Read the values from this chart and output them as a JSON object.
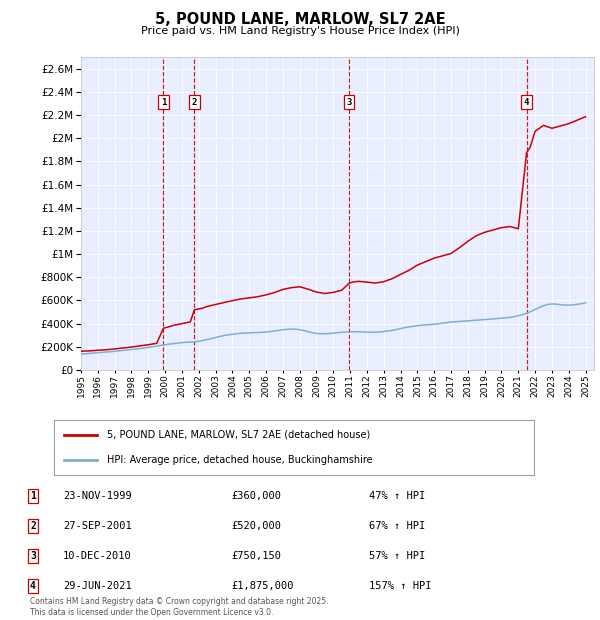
{
  "title": "5, POUND LANE, MARLOW, SL7 2AE",
  "subtitle": "Price paid vs. HM Land Registry's House Price Index (HPI)",
  "plot_bg_color": "#e8eeff",
  "ylim": [
    0,
    2700000
  ],
  "yticks": [
    0,
    200000,
    400000,
    600000,
    800000,
    1000000,
    1200000,
    1400000,
    1600000,
    1800000,
    2000000,
    2200000,
    2400000,
    2600000
  ],
  "ytick_labels": [
    "£0",
    "£200K",
    "£400K",
    "£600K",
    "£800K",
    "£1M",
    "£1.2M",
    "£1.4M",
    "£1.6M",
    "£1.8M",
    "£2M",
    "£2.2M",
    "£2.4M",
    "£2.6M"
  ],
  "xlim_start": 1995.0,
  "xlim_end": 2025.5,
  "sale_dates": [
    1999.9,
    2001.74,
    2010.95,
    2021.49
  ],
  "sale_labels": [
    "1",
    "2",
    "3",
    "4"
  ],
  "vline_color": "#cc0000",
  "hpi_color": "#7ab0d4",
  "price_color": "#cc0000",
  "legend_entries": [
    "5, POUND LANE, MARLOW, SL7 2AE (detached house)",
    "HPI: Average price, detached house, Buckinghamshire"
  ],
  "table_rows": [
    [
      "1",
      "23-NOV-1999",
      "£360,000",
      "47% ↑ HPI"
    ],
    [
      "2",
      "27-SEP-2001",
      "£520,000",
      "67% ↑ HPI"
    ],
    [
      "3",
      "10-DEC-2010",
      "£750,150",
      "57% ↑ HPI"
    ],
    [
      "4",
      "29-JUN-2021",
      "£1,875,000",
      "157% ↑ HPI"
    ]
  ],
  "footer": "Contains HM Land Registry data © Crown copyright and database right 2025.\nThis data is licensed under the Open Government Licence v3.0.",
  "hpi_x": [
    1995.0,
    1995.25,
    1995.5,
    1995.75,
    1996.0,
    1996.25,
    1996.5,
    1996.75,
    1997.0,
    1997.25,
    1997.5,
    1997.75,
    1998.0,
    1998.25,
    1998.5,
    1998.75,
    1999.0,
    1999.25,
    1999.5,
    1999.75,
    2000.0,
    2000.25,
    2000.5,
    2000.75,
    2001.0,
    2001.25,
    2001.5,
    2001.75,
    2002.0,
    2002.25,
    2002.5,
    2002.75,
    2003.0,
    2003.25,
    2003.5,
    2003.75,
    2004.0,
    2004.25,
    2004.5,
    2004.75,
    2005.0,
    2005.25,
    2005.5,
    2005.75,
    2006.0,
    2006.25,
    2006.5,
    2006.75,
    2007.0,
    2007.25,
    2007.5,
    2007.75,
    2008.0,
    2008.25,
    2008.5,
    2008.75,
    2009.0,
    2009.25,
    2009.5,
    2009.75,
    2010.0,
    2010.25,
    2010.5,
    2010.75,
    2011.0,
    2011.25,
    2011.5,
    2011.75,
    2012.0,
    2012.25,
    2012.5,
    2012.75,
    2013.0,
    2013.25,
    2013.5,
    2013.75,
    2014.0,
    2014.25,
    2014.5,
    2014.75,
    2015.0,
    2015.25,
    2015.5,
    2015.75,
    2016.0,
    2016.25,
    2016.5,
    2016.75,
    2017.0,
    2017.25,
    2017.5,
    2017.75,
    2018.0,
    2018.25,
    2018.5,
    2018.75,
    2019.0,
    2019.25,
    2019.5,
    2019.75,
    2020.0,
    2020.25,
    2020.5,
    2020.75,
    2021.0,
    2021.25,
    2021.5,
    2021.75,
    2022.0,
    2022.25,
    2022.5,
    2022.75,
    2023.0,
    2023.25,
    2023.5,
    2023.75,
    2024.0,
    2024.25,
    2024.5,
    2024.75,
    2025.0
  ],
  "hpi_y": [
    138000,
    140000,
    143000,
    146000,
    149000,
    152000,
    155000,
    158000,
    161000,
    165000,
    169000,
    173000,
    177000,
    181000,
    185000,
    190000,
    195000,
    200000,
    206000,
    212000,
    218000,
    223000,
    228000,
    232000,
    236000,
    239000,
    241000,
    243000,
    248000,
    255000,
    263000,
    271000,
    280000,
    289000,
    297000,
    303000,
    308000,
    313000,
    317000,
    319000,
    320000,
    322000,
    323000,
    325000,
    328000,
    332000,
    337000,
    342000,
    347000,
    351000,
    353000,
    352000,
    348000,
    340000,
    330000,
    322000,
    315000,
    313000,
    313000,
    315000,
    318000,
    322000,
    326000,
    328000,
    330000,
    330000,
    330000,
    329000,
    327000,
    326000,
    326000,
    328000,
    331000,
    336000,
    342000,
    349000,
    357000,
    365000,
    372000,
    377000,
    382000,
    386000,
    389000,
    392000,
    395000,
    399000,
    404000,
    409000,
    413000,
    416000,
    419000,
    421000,
    424000,
    427000,
    430000,
    432000,
    435000,
    438000,
    441000,
    444000,
    447000,
    450000,
    454000,
    460000,
    468000,
    478000,
    490000,
    505000,
    522000,
    540000,
    555000,
    565000,
    570000,
    568000,
    563000,
    560000,
    560000,
    562000,
    566000,
    572000,
    580000
  ],
  "price_x": [
    1995.0,
    1995.5,
    1996.0,
    1996.5,
    1997.0,
    1997.5,
    1998.0,
    1998.5,
    1999.0,
    1999.5,
    1999.9,
    2000.2,
    2000.5,
    2001.0,
    2001.5,
    2001.74,
    2002.2,
    2002.5,
    2003.0,
    2003.5,
    2004.0,
    2004.5,
    2005.0,
    2005.5,
    2006.0,
    2006.5,
    2007.0,
    2007.5,
    2008.0,
    2008.5,
    2009.0,
    2009.5,
    2010.0,
    2010.5,
    2010.95,
    2011.2,
    2011.5,
    2012.0,
    2012.5,
    2013.0,
    2013.5,
    2014.0,
    2014.5,
    2015.0,
    2015.5,
    2016.0,
    2016.5,
    2017.0,
    2017.5,
    2018.0,
    2018.5,
    2019.0,
    2019.5,
    2020.0,
    2020.5,
    2021.0,
    2021.49,
    2021.7,
    2022.0,
    2022.5,
    2023.0,
    2023.5,
    2024.0,
    2024.5,
    2025.0
  ],
  "price_y": [
    162000,
    165000,
    170000,
    175000,
    182000,
    190000,
    198000,
    208000,
    218000,
    230000,
    360000,
    372000,
    385000,
    400000,
    415000,
    520000,
    532000,
    548000,
    565000,
    582000,
    598000,
    613000,
    622000,
    632000,
    648000,
    668000,
    695000,
    710000,
    718000,
    698000,
    672000,
    660000,
    670000,
    688000,
    750150,
    760000,
    765000,
    758000,
    750000,
    762000,
    788000,
    825000,
    860000,
    905000,
    935000,
    965000,
    985000,
    1005000,
    1055000,
    1110000,
    1158000,
    1188000,
    1208000,
    1228000,
    1238000,
    1218000,
    1875000,
    1920000,
    2060000,
    2110000,
    2085000,
    2105000,
    2125000,
    2155000,
    2185000
  ]
}
